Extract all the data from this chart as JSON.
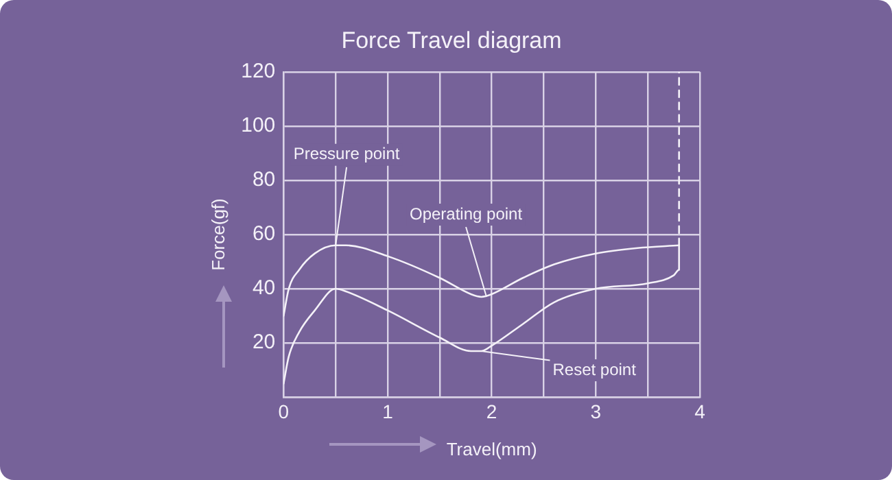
{
  "chart_data": {
    "type": "line",
    "title": "Force Travel diagram",
    "xlabel": "Travel(mm)",
    "ylabel": "Force(gf)",
    "xlim": [
      0,
      4
    ],
    "xticks": [
      0,
      {
        "value": 0.5,
        "label": null
      },
      1,
      {
        "value": 1.5,
        "label": null
      },
      2,
      {
        "value": 2.5,
        "label": null
      },
      3,
      {
        "value": 3.5,
        "label": null
      },
      4
    ],
    "ylim": [
      0,
      120
    ],
    "yticks": [
      {
        "value": 0,
        "label": null
      },
      20,
      40,
      60,
      80,
      100,
      120
    ],
    "grid": true,
    "legend": false,
    "marker": "none",
    "series": [
      {
        "color": "#f4f1f8",
        "x": [
          0,
          0.05,
          0.15,
          0.3,
          0.5,
          0.6,
          1,
          1.5,
          1.8,
          1.9,
          2,
          2.3,
          2.6,
          3,
          3.4,
          3.8
        ],
        "values": [
          30,
          40,
          47,
          53,
          56,
          56,
          52,
          44,
          38,
          37,
          38,
          44,
          49,
          53,
          55,
          56
        ]
      },
      {
        "color": "#f4f1f8",
        "x": [
          0,
          0.05,
          0.15,
          0.3,
          0.5,
          0.6,
          1,
          1.5,
          1.8,
          1.9,
          2,
          2.3,
          2.6,
          3,
          3.5,
          3.75,
          3.8,
          3.8
        ],
        "values": [
          5,
          15,
          24,
          32,
          40,
          39,
          32,
          22,
          17,
          17,
          19,
          27,
          35,
          40,
          42,
          45,
          47,
          56
        ]
      },
      {
        "color": "#f4f1f8",
        "line_style": "dashed",
        "x": [
          3.8,
          3.8
        ],
        "values": [
          56,
          120
        ]
      }
    ],
    "annotations": [
      {
        "text": "Pressure point",
        "x": 0.5,
        "y": 56
      },
      {
        "text": "Operating point",
        "x": 1.95,
        "y": 37
      },
      {
        "text": "Reset point",
        "x": 1.9,
        "y": 17
      }
    ]
  }
}
